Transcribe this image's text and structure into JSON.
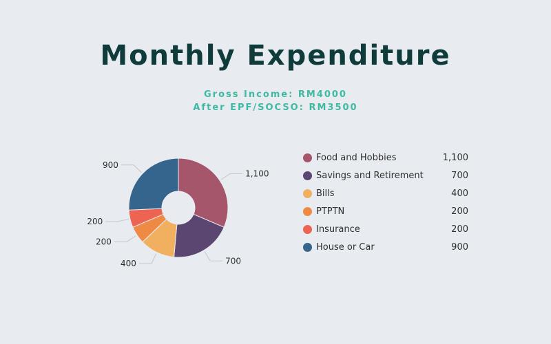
{
  "chart_data": {
    "type": "pie",
    "title": "Monthly Expenditure",
    "subtitle": [
      "Gross Income: RM4000",
      "After EPF/SOCSO: RM3500"
    ],
    "categories": [
      "Food and Hobbies",
      "Savings and Retirement",
      "Bills",
      "PTPTN",
      "Insurance",
      "House or Car"
    ],
    "values": [
      1100,
      700,
      400,
      200,
      200,
      900
    ],
    "value_labels": [
      "1,100",
      "700",
      "400",
      "200",
      "200",
      "900"
    ],
    "colors": [
      "#a6566b",
      "#5a4670",
      "#f1b05f",
      "#ef8a45",
      "#ed6452",
      "#35658d"
    ],
    "donut": true,
    "legend_position": "right"
  }
}
